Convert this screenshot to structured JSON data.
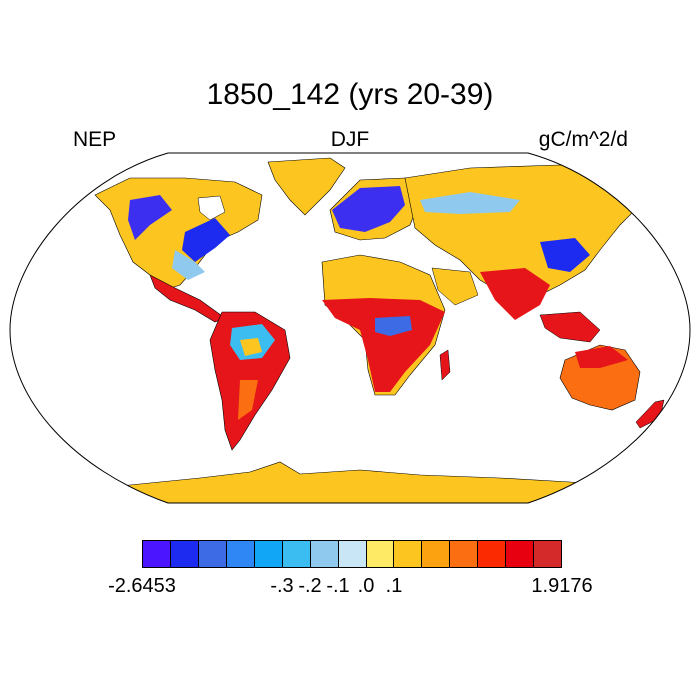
{
  "title": "1850_142 (yrs 20-39)",
  "left_label": "NEP",
  "center_label": "DJF",
  "right_label": "gC/m^2/d",
  "colorbar": {
    "colors": [
      "#4b15ff",
      "#1d2bf0",
      "#3d6be6",
      "#2f86f5",
      "#12a6f6",
      "#3bbdf2",
      "#8fcaee",
      "#c9e6f7",
      "#ffea66",
      "#fcc520",
      "#fca210",
      "#fc6e12",
      "#fc2a00",
      "#e60010",
      "#d42a2a"
    ],
    "tick_labels": [
      "-2.6453",
      "",
      "",
      "-.3",
      "-.2",
      "-.1",
      ".0",
      ".1",
      "1.9176"
    ]
  },
  "map": {
    "projection": "Robinson",
    "season": "DJF",
    "variable": "NEP",
    "colors": {
      "ocean": "#ffffff",
      "neutral_land": "#fcc520",
      "negative_strong": "#3d2ff0",
      "negative_light": "#8fcaee",
      "positive_mid": "#fc6e12",
      "positive_strong": "#e6151a"
    }
  }
}
